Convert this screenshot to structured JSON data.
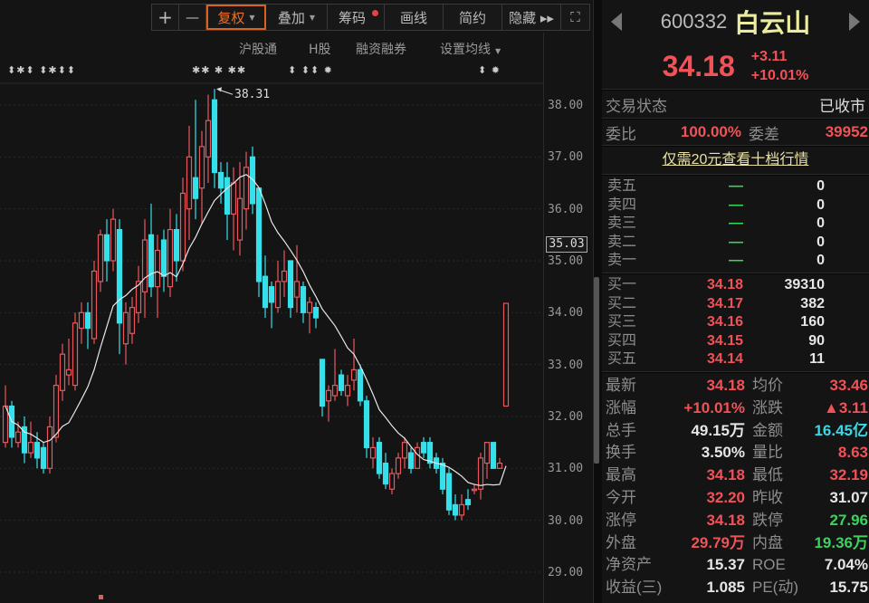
{
  "toolbar": {
    "zoom_in": "+",
    "zoom_out": "—",
    "fuquan": "复权",
    "overlay": "叠加",
    "chips": "筹码",
    "draw": "画线",
    "simple": "简约",
    "hide": "隐藏 ▸▸",
    "fullscreen_icon": "expand-icon"
  },
  "subbar": {
    "hgt": "沪股通",
    "hshare": "H股",
    "margin": "融资融券",
    "ma_setting": "设置均线"
  },
  "markers": {
    "left": "⬍✱⬍ ⬍✱⬍⬍",
    "mid": "✱✱ ✱ ✱✱",
    "mid2": "⬍ ⬍⬍ ✹",
    "right": "⬍ ✹"
  },
  "chart_data": {
    "type": "candlestick",
    "ylim": [
      28.8,
      38.6
    ],
    "yticks": [
      "38.00",
      "37.00",
      "36.00",
      "35.00",
      "34.00",
      "33.00",
      "32.00",
      "31.00",
      "30.00",
      "29.00"
    ],
    "current_marker": "35.03",
    "high_annotation": "38.31",
    "ma_period": 10,
    "colors": {
      "up": "#e8585c",
      "down": "#35e0ea",
      "ma": "#e8e8e8"
    },
    "ohlc": [
      [
        31.5,
        32.6,
        31.4,
        32.2
      ],
      [
        32.2,
        32.3,
        31.4,
        31.6
      ],
      [
        31.5,
        31.9,
        31.4,
        31.7
      ],
      [
        31.8,
        32.0,
        31.1,
        31.3
      ],
      [
        31.3,
        31.9,
        31.2,
        31.5
      ],
      [
        31.5,
        31.7,
        31.0,
        31.2
      ],
      [
        31.4,
        31.5,
        30.9,
        31.0
      ],
      [
        31.0,
        32.0,
        30.9,
        31.8
      ],
      [
        31.6,
        32.8,
        31.5,
        32.6
      ],
      [
        32.5,
        33.4,
        32.3,
        33.2
      ],
      [
        32.8,
        33.5,
        32.6,
        32.9
      ],
      [
        32.6,
        34.0,
        32.5,
        33.8
      ],
      [
        33.7,
        34.2,
        33.4,
        34.0
      ],
      [
        34.0,
        34.2,
        33.3,
        33.7
      ],
      [
        33.5,
        35.0,
        33.4,
        34.8
      ],
      [
        34.6,
        35.6,
        34.4,
        35.5
      ],
      [
        35.5,
        35.8,
        34.6,
        35.0
      ],
      [
        35.0,
        36.0,
        34.8,
        35.8
      ],
      [
        35.6,
        35.8,
        33.2,
        33.8
      ],
      [
        33.4,
        34.2,
        33.0,
        34.0
      ],
      [
        33.6,
        34.3,
        33.4,
        34.1
      ],
      [
        34.0,
        34.9,
        33.8,
        34.6
      ],
      [
        34.4,
        35.8,
        33.9,
        35.4
      ],
      [
        35.5,
        36.1,
        34.3,
        34.5
      ],
      [
        34.5,
        35.5,
        33.9,
        35.2
      ],
      [
        35.4,
        35.6,
        34.4,
        34.7
      ],
      [
        34.5,
        36.0,
        34.3,
        35.6
      ],
      [
        35.6,
        35.9,
        34.6,
        35.0
      ],
      [
        35.0,
        36.6,
        34.8,
        36.3
      ],
      [
        36.0,
        37.6,
        35.4,
        37.0
      ],
      [
        36.6,
        38.1,
        35.8,
        36.2
      ],
      [
        36.4,
        37.5,
        35.7,
        37.2
      ],
      [
        37.0,
        38.2,
        36.5,
        37.7
      ],
      [
        38.1,
        38.31,
        36.4,
        36.7
      ],
      [
        36.7,
        36.9,
        36.1,
        36.4
      ],
      [
        36.6,
        36.9,
        35.4,
        35.9
      ],
      [
        35.9,
        36.8,
        35.2,
        36.5
      ],
      [
        35.4,
        36.9,
        35.1,
        36.2
      ],
      [
        36.0,
        37.1,
        35.6,
        36.8
      ],
      [
        37.0,
        37.2,
        35.9,
        36.1
      ],
      [
        36.4,
        36.4,
        34.3,
        34.6
      ],
      [
        34.7,
        35.1,
        33.9,
        34.1
      ],
      [
        34.5,
        34.6,
        33.7,
        34.2
      ],
      [
        34.1,
        35.0,
        34.0,
        34.6
      ],
      [
        34.6,
        35.2,
        34.3,
        34.8
      ],
      [
        35.0,
        35.0,
        33.9,
        34.1
      ],
      [
        34.3,
        35.3,
        34.0,
        34.6
      ],
      [
        34.5,
        34.6,
        33.8,
        34.0
      ],
      [
        34.0,
        34.3,
        33.6,
        34.2
      ],
      [
        34.1,
        34.2,
        33.7,
        33.9
      ],
      [
        33.1,
        33.1,
        32.0,
        32.2
      ],
      [
        32.3,
        32.6,
        31.9,
        32.5
      ],
      [
        32.4,
        33.3,
        32.3,
        32.6
      ],
      [
        32.8,
        32.9,
        32.4,
        32.5
      ],
      [
        32.4,
        32.8,
        32.2,
        32.6
      ],
      [
        32.7,
        33.5,
        32.5,
        32.9
      ],
      [
        32.9,
        33.0,
        32.2,
        32.3
      ],
      [
        32.3,
        32.4,
        31.2,
        31.4
      ],
      [
        31.2,
        31.6,
        31.0,
        31.4
      ],
      [
        31.5,
        31.6,
        30.8,
        30.9
      ],
      [
        31.1,
        31.3,
        30.6,
        30.7
      ],
      [
        30.6,
        31.0,
        30.5,
        30.9
      ],
      [
        30.9,
        31.3,
        30.8,
        31.2
      ],
      [
        31.2,
        31.6,
        31.0,
        31.5
      ],
      [
        31.3,
        31.4,
        30.9,
        31.0
      ],
      [
        31.0,
        31.5,
        31.0,
        31.4
      ],
      [
        31.5,
        31.6,
        31.2,
        31.3
      ],
      [
        31.5,
        31.6,
        31.0,
        31.1
      ],
      [
        31.2,
        31.3,
        30.9,
        31.0
      ],
      [
        31.1,
        31.2,
        30.5,
        30.6
      ],
      [
        30.9,
        31.0,
        30.1,
        30.2
      ],
      [
        30.3,
        30.5,
        30.0,
        30.1
      ],
      [
        30.1,
        30.5,
        30.0,
        30.3
      ],
      [
        30.4,
        30.6,
        30.2,
        30.3
      ],
      [
        30.6,
        30.7,
        30.5,
        30.6
      ],
      [
        30.6,
        31.3,
        30.4,
        31.2
      ],
      [
        31.1,
        31.5,
        30.8,
        31.5
      ],
      [
        31.5,
        31.5,
        31.0,
        31.0
      ],
      [
        31.0,
        31.2,
        31.0,
        31.1
      ],
      [
        32.2,
        34.18,
        32.19,
        34.18
      ]
    ]
  },
  "quote": {
    "code": "600332",
    "name": "白云山",
    "price": "34.18",
    "change": "+3.11",
    "change_pct": "+10.01%"
  },
  "status": {
    "label": "交易状态",
    "value": "已收市"
  },
  "weibi": {
    "label": "委比",
    "value": "100.00%",
    "label2": "委差",
    "value2": "39952"
  },
  "promo_link": "仅需20元查看十档行情",
  "sell": [
    {
      "label": "卖五",
      "price": "—",
      "vol": "0"
    },
    {
      "label": "卖四",
      "price": "—",
      "vol": "0"
    },
    {
      "label": "卖三",
      "price": "—",
      "vol": "0"
    },
    {
      "label": "卖二",
      "price": "—",
      "vol": "0"
    },
    {
      "label": "卖一",
      "price": "—",
      "vol": "0"
    }
  ],
  "buy": [
    {
      "label": "买一",
      "price": "34.18",
      "vol": "39310"
    },
    {
      "label": "买二",
      "price": "34.17",
      "vol": "382"
    },
    {
      "label": "买三",
      "price": "34.16",
      "vol": "160"
    },
    {
      "label": "买四",
      "price": "34.15",
      "vol": "90"
    },
    {
      "label": "买五",
      "price": "34.14",
      "vol": "11"
    }
  ],
  "stats": [
    {
      "l1": "最新",
      "v1": "34.18",
      "c1": "red",
      "l2": "均价",
      "v2": "33.46",
      "c2": "red"
    },
    {
      "l1": "涨幅",
      "v1": "+10.01%",
      "c1": "red",
      "l2": "涨跌",
      "v2": "▲3.11",
      "c2": "red"
    },
    {
      "l1": "总手",
      "v1": "49.15万",
      "c1": "white",
      "l2": "金额",
      "v2": "16.45亿",
      "c2": "cyan"
    },
    {
      "l1": "换手",
      "v1": "3.50%",
      "c1": "white",
      "l2": "量比",
      "v2": "8.63",
      "c2": "red"
    },
    {
      "l1": "最高",
      "v1": "34.18",
      "c1": "red",
      "l2": "最低",
      "v2": "32.19",
      "c2": "red"
    },
    {
      "l1": "今开",
      "v1": "32.20",
      "c1": "red",
      "l2": "昨收",
      "v2": "31.07",
      "c2": "white"
    },
    {
      "l1": "涨停",
      "v1": "34.18",
      "c1": "red",
      "l2": "跌停",
      "v2": "27.96",
      "c2": "green"
    },
    {
      "l1": "外盘",
      "v1": "29.79万",
      "c1": "red",
      "l2": "内盘",
      "v2": "19.36万",
      "c2": "green"
    },
    {
      "l1": "净资产",
      "v1": "15.37",
      "c1": "white",
      "l2": "ROE",
      "v2": "7.04%",
      "c2": "white"
    },
    {
      "l1": "收益(三)",
      "v1": "1.085",
      "c1": "white",
      "l2": "PE(动)",
      "v2": "15.75",
      "c2": "white"
    }
  ]
}
